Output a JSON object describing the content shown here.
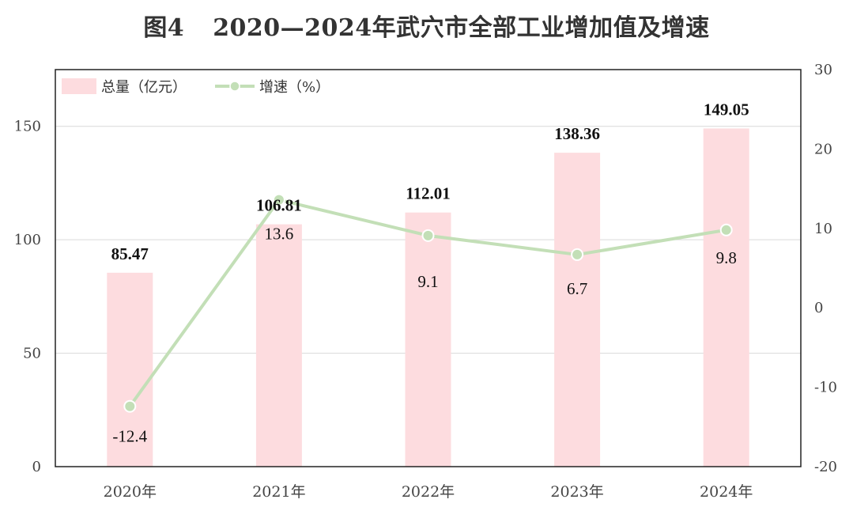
{
  "figure": {
    "number": "图4",
    "title": "2020—2024年武穴市全部工业增加值及增速"
  },
  "chart_data": {
    "type": "bar",
    "categories": [
      "2020年",
      "2021年",
      "2022年",
      "2023年",
      "2024年"
    ],
    "series": [
      {
        "name": "总量（亿元）",
        "kind": "bar",
        "axis": "left",
        "values": [
          85.47,
          106.81,
          112.01,
          138.36,
          149.05
        ],
        "labels": [
          "85.47",
          "106.81",
          "112.01",
          "138.36",
          "149.05"
        ],
        "color": "#fddcdf"
      },
      {
        "name": "增速（%）",
        "kind": "line",
        "axis": "right",
        "values": [
          -12.4,
          13.6,
          9.1,
          6.7,
          9.8
        ],
        "labels": [
          "-12.4",
          "13.6",
          "9.1",
          "6.7",
          "9.8"
        ],
        "color": "#c3dfb7"
      }
    ],
    "y_left": {
      "lim": [
        0,
        175
      ],
      "ticks": [
        0,
        50,
        100,
        150
      ],
      "tick_labels": [
        "0",
        "50",
        "100",
        "150"
      ]
    },
    "y_right": {
      "lim": [
        -20,
        30
      ],
      "ticks": [
        -20,
        -10,
        0,
        10,
        20,
        30
      ],
      "tick_labels": [
        "-20",
        "-10",
        "0",
        "10",
        "20",
        "30"
      ]
    },
    "grid": true,
    "legend_position": "top-left"
  }
}
